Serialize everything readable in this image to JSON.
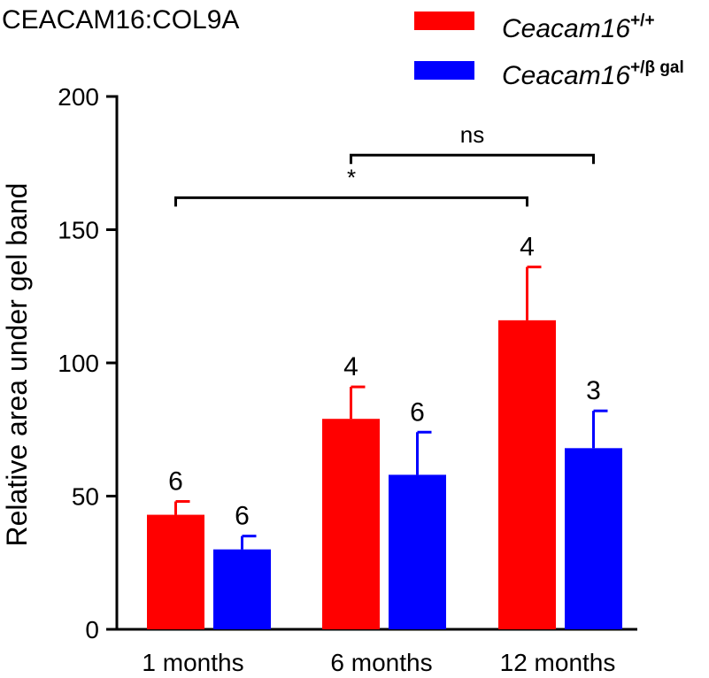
{
  "chart_data": {
    "type": "bar",
    "title": "CEACAM16:COL9A",
    "ylabel": "Relative area under gel band",
    "xlabel": "",
    "ylim": [
      0,
      200
    ],
    "yticks": [
      0,
      50,
      100,
      150,
      200
    ],
    "categories": [
      "1 months",
      "6 months",
      "12 months"
    ],
    "series": [
      {
        "name": "Ceacam16",
        "genotype": "+/+",
        "color": "#ff0000",
        "values": [
          43,
          79,
          116
        ],
        "errors": [
          5,
          12,
          20
        ],
        "n": [
          "6",
          "4",
          "4"
        ]
      },
      {
        "name": "Ceacam16",
        "genotype": "+/β gal",
        "color": "#0000ff",
        "values": [
          30,
          58,
          68
        ],
        "errors": [
          5,
          16,
          14
        ],
        "n": [
          "6",
          "6",
          "3"
        ]
      }
    ],
    "comparisons": [
      {
        "label": "ns",
        "from_group": 1,
        "from_series": 0,
        "to_group": 2,
        "to_series": 1,
        "y": 178
      },
      {
        "label": "*",
        "from_group": 0,
        "from_series": 0,
        "to_group": 2,
        "to_series": 0,
        "y": 162
      }
    ]
  }
}
